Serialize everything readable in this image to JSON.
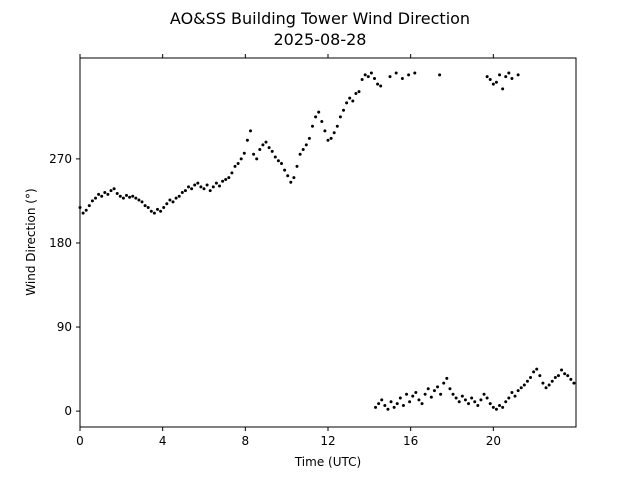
{
  "chart_data": {
    "type": "scatter",
    "title": "AO&SS Building Tower Wind Direction",
    "subtitle": "2025-08-28",
    "xlabel": "Time (UTC)",
    "ylabel": "Wind Direction (°)",
    "xlim": [
      0,
      24
    ],
    "ylim": [
      -17,
      378
    ],
    "xticks": [
      0,
      4,
      8,
      12,
      16,
      20
    ],
    "yticks": [
      0,
      90,
      180,
      270
    ],
    "marker_color": "#000000",
    "grid": false,
    "series": [
      {
        "points": [
          [
            0.0,
            218
          ],
          [
            0.15,
            212
          ],
          [
            0.3,
            215
          ],
          [
            0.45,
            220
          ],
          [
            0.6,
            225
          ],
          [
            0.75,
            228
          ],
          [
            0.9,
            232
          ],
          [
            1.05,
            230
          ],
          [
            1.2,
            234
          ],
          [
            1.35,
            232
          ],
          [
            1.5,
            236
          ],
          [
            1.65,
            238
          ],
          [
            1.8,
            233
          ],
          [
            1.95,
            230
          ],
          [
            2.1,
            228
          ],
          [
            2.25,
            231
          ],
          [
            2.4,
            229
          ],
          [
            2.55,
            230
          ],
          [
            2.7,
            228
          ],
          [
            2.85,
            226
          ],
          [
            3.0,
            224
          ],
          [
            3.15,
            220
          ],
          [
            3.3,
            218
          ],
          [
            3.45,
            214
          ],
          [
            3.6,
            212
          ],
          [
            3.75,
            216
          ],
          [
            3.9,
            214
          ],
          [
            4.05,
            218
          ],
          [
            4.2,
            222
          ],
          [
            4.35,
            226
          ],
          [
            4.5,
            224
          ],
          [
            4.65,
            228
          ],
          [
            4.8,
            230
          ],
          [
            4.95,
            234
          ],
          [
            5.1,
            236
          ],
          [
            5.25,
            240
          ],
          [
            5.4,
            238
          ],
          [
            5.55,
            242
          ],
          [
            5.7,
            244
          ],
          [
            5.85,
            240
          ],
          [
            6.0,
            238
          ],
          [
            6.15,
            242
          ],
          [
            6.3,
            236
          ],
          [
            6.45,
            240
          ],
          [
            6.6,
            244
          ],
          [
            6.75,
            241
          ],
          [
            6.9,
            246
          ],
          [
            7.05,
            248
          ],
          [
            7.2,
            250
          ],
          [
            7.35,
            255
          ],
          [
            7.5,
            262
          ],
          [
            7.65,
            265
          ],
          [
            7.8,
            270
          ],
          [
            7.95,
            276
          ],
          [
            8.1,
            290
          ],
          [
            8.25,
            300
          ],
          [
            8.4,
            275
          ],
          [
            8.55,
            270
          ],
          [
            8.7,
            280
          ],
          [
            8.85,
            285
          ],
          [
            9.0,
            288
          ],
          [
            9.15,
            282
          ],
          [
            9.3,
            278
          ],
          [
            9.45,
            272
          ],
          [
            9.6,
            268
          ],
          [
            9.75,
            265
          ],
          [
            9.9,
            258
          ],
          [
            10.05,
            252
          ],
          [
            10.2,
            245
          ],
          [
            10.35,
            250
          ],
          [
            10.5,
            262
          ],
          [
            10.65,
            275
          ],
          [
            10.8,
            280
          ],
          [
            10.95,
            285
          ],
          [
            11.1,
            292
          ],
          [
            11.25,
            305
          ],
          [
            11.4,
            315
          ],
          [
            11.55,
            320
          ],
          [
            11.7,
            310
          ],
          [
            11.85,
            300
          ],
          [
            12.0,
            290
          ],
          [
            12.15,
            292
          ],
          [
            12.3,
            298
          ],
          [
            12.45,
            305
          ],
          [
            12.6,
            315
          ],
          [
            12.75,
            322
          ],
          [
            12.9,
            330
          ],
          [
            13.05,
            335
          ],
          [
            13.2,
            332
          ],
          [
            13.35,
            340
          ],
          [
            13.5,
            342
          ],
          [
            13.65,
            355
          ],
          [
            13.8,
            360
          ],
          [
            13.95,
            358
          ],
          [
            14.1,
            362
          ],
          [
            14.25,
            356
          ],
          [
            14.4,
            350
          ],
          [
            14.55,
            348
          ],
          [
            15.0,
            358
          ],
          [
            15.3,
            362
          ],
          [
            15.6,
            356
          ],
          [
            15.9,
            360
          ],
          [
            16.2,
            362
          ],
          [
            17.4,
            360
          ],
          [
            19.7,
            358
          ],
          [
            19.85,
            355
          ],
          [
            20.0,
            350
          ],
          [
            20.15,
            352
          ],
          [
            20.3,
            360
          ],
          [
            20.45,
            345
          ],
          [
            20.6,
            358
          ],
          [
            20.75,
            362
          ],
          [
            20.9,
            356
          ],
          [
            21.2,
            360
          ],
          [
            14.3,
            4
          ],
          [
            14.45,
            8
          ],
          [
            14.6,
            12
          ],
          [
            14.75,
            6
          ],
          [
            14.9,
            2
          ],
          [
            15.05,
            10
          ],
          [
            15.2,
            4
          ],
          [
            15.35,
            8
          ],
          [
            15.5,
            14
          ],
          [
            15.65,
            6
          ],
          [
            15.8,
            18
          ],
          [
            15.95,
            10
          ],
          [
            16.1,
            16
          ],
          [
            16.25,
            20
          ],
          [
            16.4,
            12
          ],
          [
            16.55,
            8
          ],
          [
            16.7,
            18
          ],
          [
            16.85,
            24
          ],
          [
            17.0,
            15
          ],
          [
            17.15,
            22
          ],
          [
            17.3,
            26
          ],
          [
            17.45,
            18
          ],
          [
            17.6,
            30
          ],
          [
            17.75,
            35
          ],
          [
            17.9,
            24
          ],
          [
            18.05,
            18
          ],
          [
            18.2,
            14
          ],
          [
            18.35,
            10
          ],
          [
            18.5,
            16
          ],
          [
            18.65,
            12
          ],
          [
            18.8,
            8
          ],
          [
            18.95,
            14
          ],
          [
            19.1,
            10
          ],
          [
            19.25,
            6
          ],
          [
            19.4,
            12
          ],
          [
            19.55,
            18
          ],
          [
            19.7,
            14
          ],
          [
            19.85,
            8
          ],
          [
            20.0,
            4
          ],
          [
            20.15,
            2
          ],
          [
            20.3,
            6
          ],
          [
            20.45,
            4
          ],
          [
            20.6,
            10
          ],
          [
            20.75,
            14
          ],
          [
            20.9,
            20
          ],
          [
            21.05,
            16
          ],
          [
            21.2,
            22
          ],
          [
            21.35,
            25
          ],
          [
            21.5,
            28
          ],
          [
            21.65,
            32
          ],
          [
            21.8,
            36
          ],
          [
            21.95,
            42
          ],
          [
            22.1,
            45
          ],
          [
            22.25,
            38
          ],
          [
            22.4,
            30
          ],
          [
            22.55,
            25
          ],
          [
            22.7,
            28
          ],
          [
            22.85,
            32
          ],
          [
            23.0,
            36
          ],
          [
            23.15,
            38
          ],
          [
            23.3,
            44
          ],
          [
            23.45,
            40
          ],
          [
            23.6,
            38
          ],
          [
            23.75,
            34
          ],
          [
            23.9,
            30
          ]
        ]
      }
    ]
  }
}
